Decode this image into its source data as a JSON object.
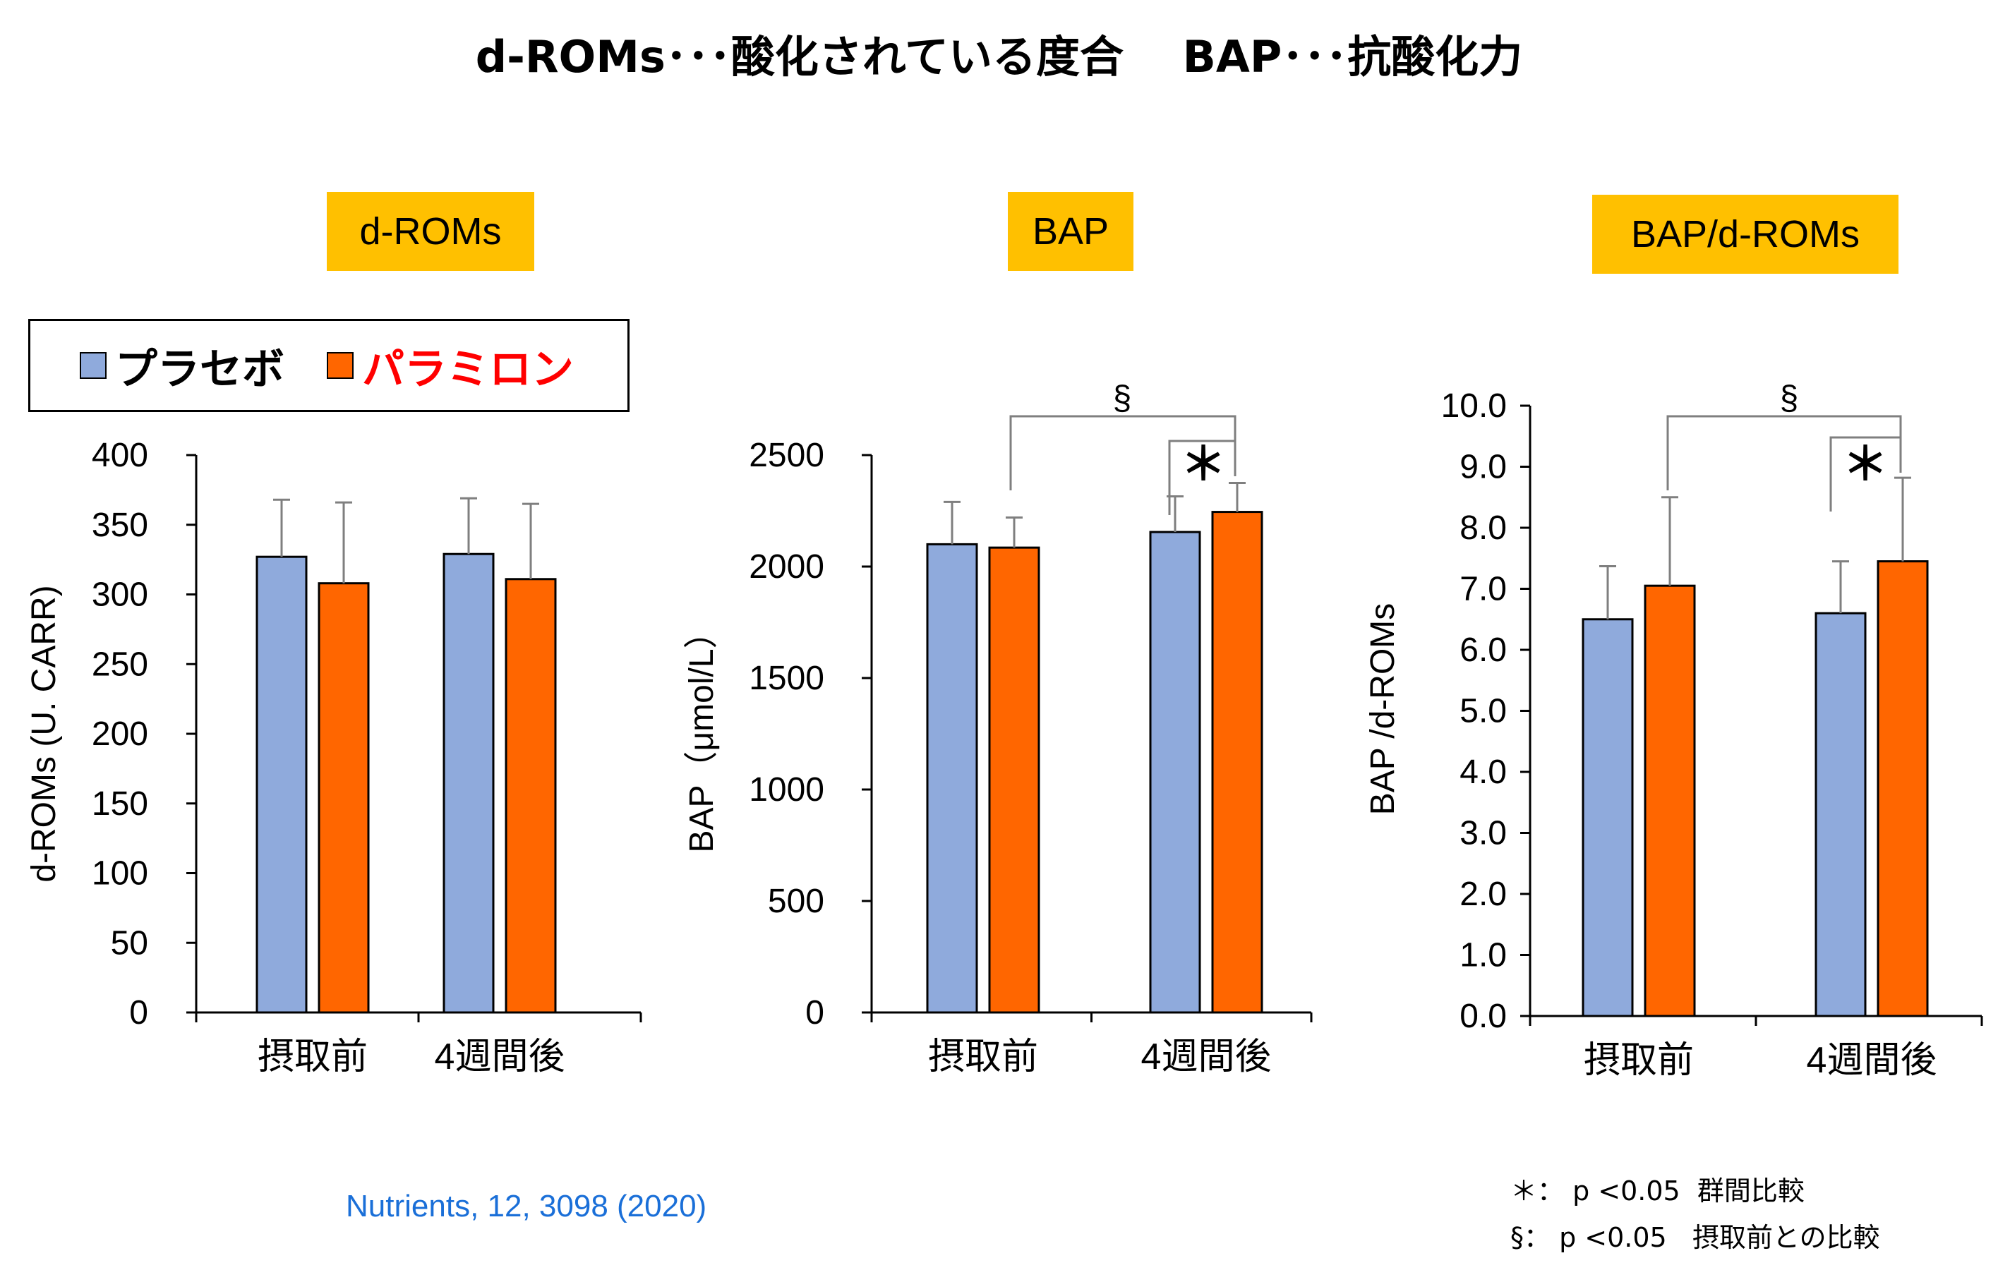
{
  "headline": "d-ROMs･･･酸化されている度合　 BAP･･･抗酸化力",
  "legend": {
    "items": [
      {
        "label": "プラセボ",
        "color": "#8faadc",
        "text_color": "#000000"
      },
      {
        "label": "パラミロン",
        "color": "#ff6600",
        "text_color": "#ff0000"
      }
    ]
  },
  "citation": "Nutrients, 12, 3098 (2020)",
  "notes": {
    "line1": "＊： p <0.05  群間比較",
    "line2": "§： p <0.05   摂取前との比較"
  },
  "chart_data": [
    {
      "type": "bar",
      "title": "d-ROMs",
      "ylabel": "d-ROMs (U. CARR)",
      "ylim": [
        0,
        400
      ],
      "yticks": [
        "0",
        "50",
        "100",
        "150",
        "200",
        "250",
        "300",
        "350",
        "400"
      ],
      "categories": [
        "摂取前",
        "4週間後"
      ],
      "series": [
        {
          "name": "プラセボ",
          "color": "#8faadc",
          "values": [
            327,
            329
          ],
          "errors": [
            41,
            40
          ]
        },
        {
          "name": "パラミロン",
          "color": "#ff6600",
          "values": [
            308,
            311
          ],
          "errors": [
            58,
            54
          ]
        }
      ],
      "annotations": []
    },
    {
      "type": "bar",
      "title": "BAP",
      "ylabel": "BAP（μmol/L）",
      "ylim": [
        0,
        2500
      ],
      "yticks": [
        "0",
        "500",
        "1000",
        "1500",
        "2000",
        "2500"
      ],
      "categories": [
        "摂取前",
        "4週間後"
      ],
      "series": [
        {
          "name": "プラセボ",
          "color": "#8faadc",
          "values": [
            2100,
            2155
          ],
          "errors": [
            190,
            160
          ]
        },
        {
          "name": "パラミロン",
          "color": "#ff6600",
          "values": [
            2085,
            2245
          ],
          "errors": [
            135,
            130
          ]
        }
      ],
      "annotations": [
        {
          "symbol": "§",
          "between": "パラミロン 摂取前 vs パラミロン 4週間後"
        },
        {
          "symbol": "＊",
          "between": "プラセボ 4週間後 vs パラミロン 4週間後"
        }
      ]
    },
    {
      "type": "bar",
      "title": "BAP/d-ROMs",
      "ylabel": "BAP /d-ROMs",
      "ylim": [
        0,
        10
      ],
      "yticks": [
        "0.0",
        "1.0",
        "2.0",
        "3.0",
        "4.0",
        "5.0",
        "6.0",
        "7.0",
        "8.0",
        "9.0",
        "10.0"
      ],
      "categories": [
        "摂取前",
        "4週間後"
      ],
      "series": [
        {
          "name": "プラセボ",
          "color": "#8faadc",
          "values": [
            6.5,
            6.6
          ],
          "errors": [
            0.87,
            0.85
          ]
        },
        {
          "name": "パラミロン",
          "color": "#ff6600",
          "values": [
            7.05,
            7.45
          ],
          "errors": [
            1.45,
            1.37
          ]
        }
      ],
      "annotations": [
        {
          "symbol": "§",
          "between": "パラミロン 摂取前 vs パラミロン 4週間後"
        },
        {
          "symbol": "＊",
          "between": "プラセボ 4週間後 vs パラミロン 4週間後"
        }
      ]
    }
  ]
}
